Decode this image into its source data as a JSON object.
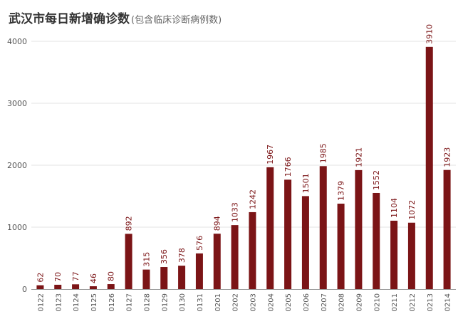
{
  "chart_data": {
    "type": "bar",
    "title": "武汉市每日新增确诊数",
    "subtitle": "(包含临床诊断病例数)",
    "categories": [
      "0122",
      "0123",
      "0124",
      "0125",
      "0126",
      "0127",
      "0128",
      "0129",
      "0130",
      "0131",
      "0201",
      "0202",
      "0203",
      "0204",
      "0205",
      "0206",
      "0207",
      "0208",
      "0209",
      "0210",
      "0211",
      "0212",
      "0213",
      "0214"
    ],
    "values": [
      62,
      70,
      77,
      46,
      80,
      892,
      315,
      356,
      378,
      576,
      894,
      1033,
      1242,
      1967,
      1766,
      1501,
      1985,
      1379,
      1921,
      1552,
      1104,
      1072,
      3910,
      1923
    ],
    "ylim": [
      0,
      4000
    ],
    "yticks": [
      0,
      1000,
      2000,
      3000,
      4000
    ],
    "grid": true,
    "bar_color": "#7b1416"
  }
}
